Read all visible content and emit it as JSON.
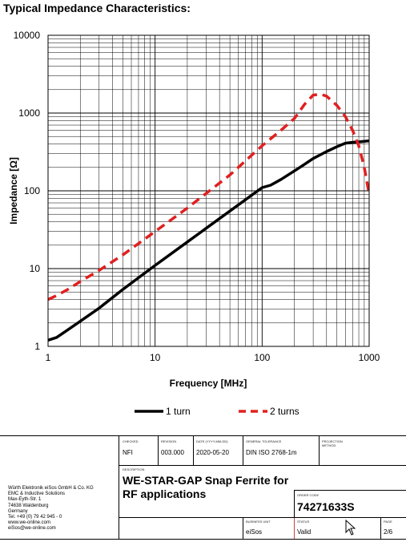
{
  "page_title": "Typical Impedance Characteristics:",
  "chart_data": {
    "type": "line",
    "x_scale": "log",
    "y_scale": "log",
    "xlabel": "Frequency [MHz]",
    "ylabel": "Impedance [Ω]",
    "xlim": [
      1,
      1000
    ],
    "ylim": [
      1,
      10000
    ],
    "x_ticks": [
      "1",
      "10",
      "100",
      "1000"
    ],
    "y_ticks": [
      "1",
      "10",
      "100",
      "1000",
      "10000"
    ],
    "grid": true,
    "legend_position": "bottom",
    "series": [
      {
        "name": "1 turn",
        "color": "#000000",
        "style": "solid",
        "points": [
          [
            1,
            1.2
          ],
          [
            1.2,
            1.3
          ],
          [
            1.5,
            1.6
          ],
          [
            2,
            2.1
          ],
          [
            3,
            3.1
          ],
          [
            5,
            5.4
          ],
          [
            10,
            11
          ],
          [
            20,
            22
          ],
          [
            50,
            55
          ],
          [
            100,
            110
          ],
          [
            120,
            118
          ],
          [
            150,
            140
          ],
          [
            200,
            180
          ],
          [
            250,
            220
          ],
          [
            300,
            260
          ],
          [
            400,
            320
          ],
          [
            500,
            370
          ],
          [
            600,
            410
          ],
          [
            700,
            420
          ],
          [
            800,
            425
          ],
          [
            1000,
            440
          ]
        ]
      },
      {
        "name": "2 turns",
        "color": "#e02020",
        "style": "dashed",
        "points": [
          [
            1,
            4
          ],
          [
            1.2,
            4.5
          ],
          [
            1.5,
            5.3
          ],
          [
            2,
            6.8
          ],
          [
            3,
            9.5
          ],
          [
            5,
            15
          ],
          [
            10,
            30
          ],
          [
            20,
            60
          ],
          [
            50,
            160
          ],
          [
            100,
            380
          ],
          [
            150,
            600
          ],
          [
            200,
            850
          ],
          [
            250,
            1300
          ],
          [
            300,
            1700
          ],
          [
            350,
            1750
          ],
          [
            400,
            1650
          ],
          [
            500,
            1250
          ],
          [
            600,
            900
          ],
          [
            700,
            600
          ],
          [
            800,
            380
          ],
          [
            900,
            200
          ],
          [
            1000,
            90
          ]
        ]
      }
    ]
  },
  "title_block": {
    "checked": {
      "caption": "CHECKED",
      "value": "NFI"
    },
    "revision": {
      "caption": "REVISION",
      "value": "003.000"
    },
    "date": {
      "caption": "DATE (YYYY-MM-DD)",
      "value": "2020-05-20"
    },
    "tolerance": {
      "caption": "GENERAL TOLERANCE",
      "value": "DIN ISO 2768-1m"
    },
    "projection": {
      "caption": "PROJECTION METHOD",
      "value": ""
    },
    "description": {
      "caption": "DESCRIPTION",
      "value": "WE-STAR-GAP Snap Ferrite for RF applications"
    },
    "order_code": {
      "caption": "ORDER CODE",
      "value": "74271633S"
    },
    "business_unit": {
      "caption": "BUSINESS UNIT",
      "value": "eiSos"
    },
    "status": {
      "caption": "STATUS",
      "value": "Valid"
    },
    "page": {
      "caption": "PAGE",
      "value": "2/6"
    }
  },
  "company": {
    "lines": [
      "Würth Elektronik eiSos GmbH & Co. KG",
      "EMC & Inductive Solutions",
      "Max-Eyth-Str. 1",
      "74638 Waldenburg",
      "Germany",
      "Tel. +49 (0) 79 42 945 - 0",
      "www.we-online.com",
      "eiSos@we-online.com"
    ]
  }
}
